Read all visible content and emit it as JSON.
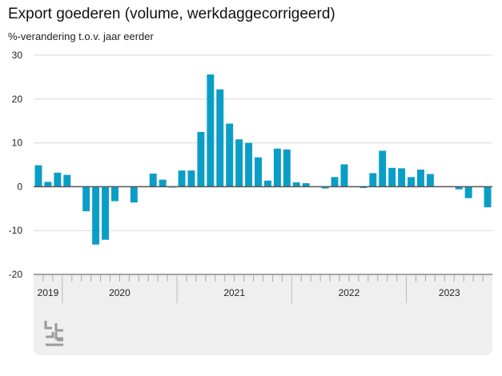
{
  "chart_data": {
    "type": "bar",
    "title": "Export goederen (volume, werkdaggecorrigeerd)",
    "ylabel": "%-verandering t.o.v. jaar eerder",
    "xlabel": "",
    "ylim": [
      -20,
      30
    ],
    "yticks": [
      30,
      20,
      10,
      0,
      -10,
      -20
    ],
    "grid": true,
    "color": "#0a9ec7",
    "years": [
      {
        "label": "2019",
        "months": 3
      },
      {
        "label": "2020",
        "months": 12
      },
      {
        "label": "2021",
        "months": 12
      },
      {
        "label": "2022",
        "months": 12
      },
      {
        "label": "2023",
        "months": 9
      }
    ],
    "values": [
      4.9,
      1.1,
      3.2,
      2.7,
      0.1,
      -5.6,
      -13.2,
      -12.1,
      -3.3,
      0.0,
      -3.6,
      0.1,
      3.0,
      1.6,
      -0.2,
      3.7,
      3.7,
      12.5,
      25.6,
      22.2,
      14.4,
      10.8,
      10.0,
      6.7,
      1.4,
      8.7,
      8.5,
      1.0,
      0.8,
      -0.1,
      -0.4,
      2.2,
      5.1,
      0.1,
      -0.3,
      3.1,
      8.2,
      4.3,
      4.2,
      2.2,
      3.9,
      2.9,
      0.1,
      0.1,
      -0.6,
      -2.6,
      0.1,
      -4.7
    ]
  }
}
